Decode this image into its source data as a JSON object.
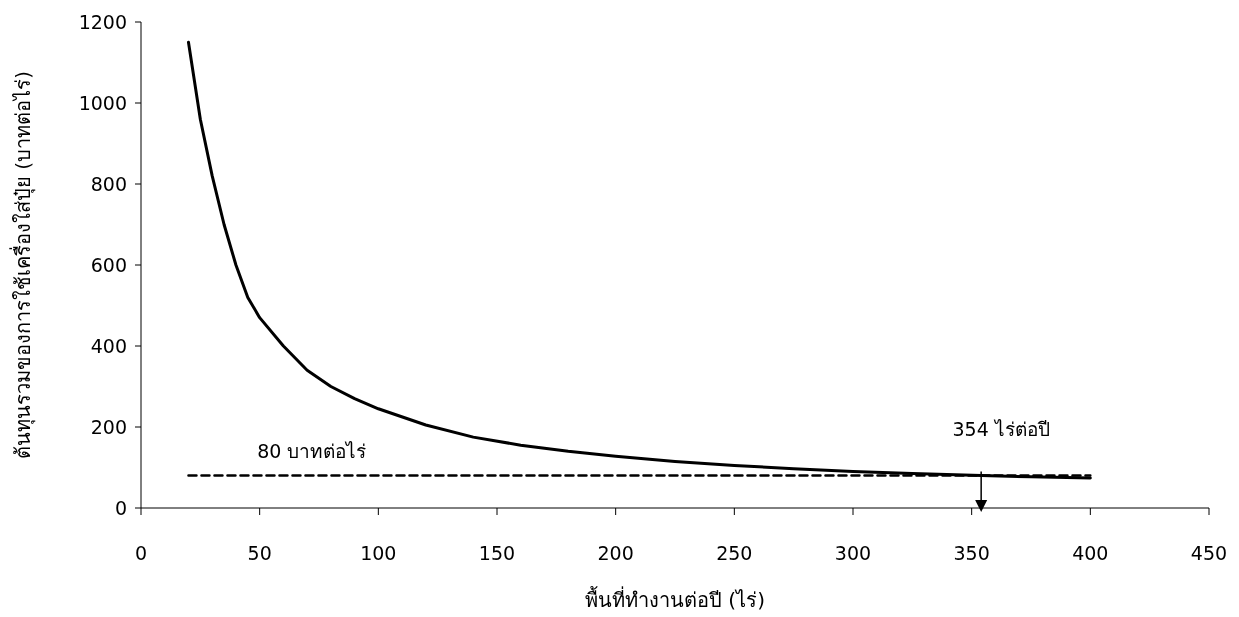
{
  "chart_data": {
    "type": "line",
    "xlabel": "พื้นที่ทำงานต่อปี (ไร่)",
    "ylabel": "ต้นทุนรวมของการใช้เครื่องใส่ปุ๋ย (บาทต่อไร่)",
    "xlim": [
      0,
      450
    ],
    "xticks": [
      0,
      50,
      100,
      150,
      200,
      250,
      300,
      350,
      400,
      450
    ],
    "ylim": [
      0,
      1200
    ],
    "yticks": [
      0,
      200,
      400,
      600,
      800,
      1000,
      1200
    ],
    "grid": false,
    "marker": "none",
    "series": [
      {
        "color": "#000000",
        "line_style": "solid",
        "x": [
          20,
          25,
          30,
          35,
          40,
          45,
          50,
          60,
          70,
          80,
          90,
          100,
          120,
          140,
          160,
          180,
          200,
          225,
          250,
          275,
          300,
          325,
          354,
          375,
          400
        ],
        "values": [
          1150,
          960,
          820,
          700,
          600,
          520,
          470,
          400,
          340,
          300,
          270,
          245,
          205,
          175,
          155,
          140,
          128,
          115,
          105,
          97,
          90,
          85,
          80,
          77,
          74
        ]
      },
      {
        "color": "#000000",
        "line_style": "dashed",
        "x": [
          20,
          400
        ],
        "values": [
          80,
          80
        ]
      }
    ],
    "annotations": [
      {
        "text": "80 บาทต่อไร่",
        "x": 72,
        "y": 80
      },
      {
        "text": "354 ไร่ต่อปี",
        "x": 354,
        "y": 80
      }
    ]
  }
}
